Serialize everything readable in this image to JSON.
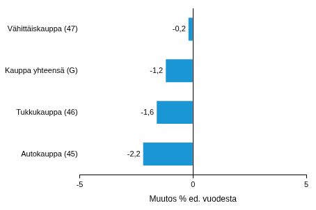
{
  "chart_data": {
    "type": "bar",
    "orientation": "horizontal",
    "categories": [
      "Vähittäiskauppa (47)",
      "Kauppa yhteensä (G)",
      "Tukkukauppa (46)",
      "Autokauppa (45)"
    ],
    "values": [
      -0.2,
      -1.2,
      -1.6,
      -2.2
    ],
    "value_labels": [
      "-0,2",
      "-1,2",
      "-1,6",
      "-2,2"
    ],
    "data_labels": true,
    "color": "#1a96d4",
    "x_label": "Muutos % ed. vuodesta",
    "xlim": [
      -5,
      5
    ],
    "xticks": [
      -5,
      0,
      5
    ],
    "grid": false
  }
}
